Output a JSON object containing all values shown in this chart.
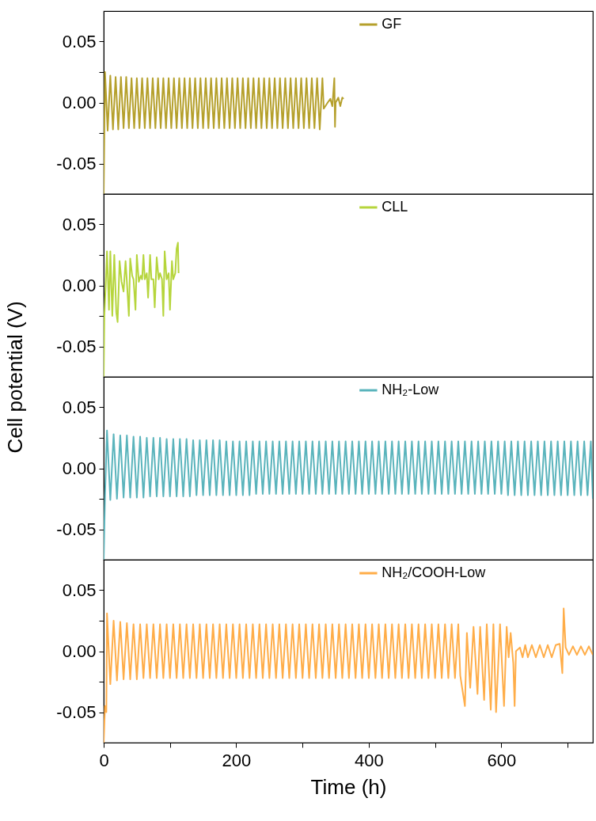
{
  "chart_data": [
    {
      "type": "line",
      "xlim": [
        0,
        738
      ],
      "ylim": [
        -0.075,
        0.075
      ],
      "tick_labels": "y",
      "grid": false,
      "legend": "top",
      "marker": "none",
      "line_style": "solid",
      "yticks": [
        {
          "value": -0.05,
          "label": "-0.05"
        },
        {
          "value": -0.025,
          "label": null
        },
        {
          "value": 0,
          "label": "0.00"
        },
        {
          "value": 0.025,
          "label": null
        },
        {
          "value": 0.05,
          "label": "0.05"
        }
      ],
      "x": [
        0,
        1,
        2,
        6,
        10,
        14,
        18,
        22,
        26,
        30,
        34,
        38,
        42,
        46,
        50,
        54,
        58,
        62,
        66,
        70,
        74,
        78,
        82,
        86,
        90,
        94,
        98,
        102,
        106,
        110,
        114,
        118,
        122,
        126,
        130,
        134,
        138,
        142,
        146,
        150,
        154,
        158,
        162,
        166,
        170,
        174,
        178,
        182,
        186,
        190,
        194,
        198,
        202,
        206,
        210,
        214,
        218,
        222,
        226,
        230,
        234,
        238,
        242,
        246,
        250,
        254,
        258,
        262,
        266,
        270,
        274,
        278,
        282,
        286,
        290,
        294,
        298,
        302,
        306,
        310,
        314,
        318,
        322,
        326,
        330,
        332,
        338,
        342,
        345,
        348,
        349,
        350,
        354,
        357,
        360,
        362
      ],
      "series": [
        {
          "name": "GF",
          "color": "#b5a02c",
          "values": [
            -0.075,
            -0.024,
            0.025,
            -0.023,
            0.022,
            -0.022,
            0.021,
            -0.022,
            0.021,
            -0.021,
            0.021,
            -0.021,
            0.02,
            -0.021,
            0.02,
            -0.021,
            0.02,
            -0.021,
            0.02,
            -0.021,
            0.02,
            -0.021,
            0.02,
            -0.021,
            0.02,
            -0.021,
            0.02,
            -0.021,
            0.02,
            -0.021,
            0.02,
            -0.021,
            0.02,
            -0.021,
            0.02,
            -0.021,
            0.02,
            -0.021,
            0.02,
            -0.021,
            0.02,
            -0.021,
            0.02,
            -0.021,
            0.02,
            -0.021,
            0.02,
            -0.021,
            0.02,
            -0.021,
            0.02,
            -0.021,
            0.02,
            -0.021,
            0.02,
            -0.021,
            0.02,
            -0.021,
            0.02,
            -0.021,
            0.02,
            -0.021,
            0.02,
            -0.021,
            0.02,
            -0.021,
            0.02,
            -0.021,
            0.02,
            -0.021,
            0.02,
            -0.021,
            0.02,
            -0.021,
            0.02,
            -0.021,
            0.02,
            -0.021,
            0.02,
            -0.021,
            0.02,
            -0.021,
            0.02,
            -0.022,
            0.02,
            -0.005,
            0.0,
            0.003,
            -0.003,
            0.02,
            -0.02,
            0.0,
            0.004,
            -0.003,
            0.004,
            0.003
          ]
        }
      ]
    },
    {
      "type": "line",
      "xlim": [
        0,
        738
      ],
      "ylim": [
        -0.075,
        0.075
      ],
      "tick_labels": "y",
      "grid": false,
      "legend": "top",
      "marker": "none",
      "line_style": "solid",
      "ylabel": "Cell potential (V)",
      "yticks": [
        {
          "value": -0.05,
          "label": "-0.05"
        },
        {
          "value": -0.025,
          "label": null
        },
        {
          "value": 0,
          "label": "0.00"
        },
        {
          "value": 0.025,
          "label": null
        },
        {
          "value": 0.05,
          "label": "0.05"
        }
      ],
      "x": [
        0,
        1,
        3,
        5,
        8,
        10,
        13,
        16,
        19,
        21,
        24,
        27,
        30,
        33,
        35,
        38,
        40,
        43,
        45,
        48,
        50,
        53,
        56,
        58,
        60,
        62,
        65,
        67,
        70,
        72,
        75,
        77,
        80,
        83,
        85,
        88,
        90,
        92,
        95,
        98,
        100,
        103,
        105,
        108,
        110,
        112,
        113
      ],
      "series": [
        {
          "name": "CLL",
          "color": "#b6d53c",
          "values": [
            -0.075,
            -0.025,
            0.0,
            0.028,
            -0.02,
            0.028,
            -0.025,
            0.025,
            -0.022,
            -0.03,
            0.02,
            0.003,
            -0.005,
            0.02,
            0.003,
            -0.025,
            0.022,
            0.008,
            0.005,
            -0.02,
            0.025,
            0.003,
            0.008,
            0.005,
            0.025,
            0.005,
            0.01,
            -0.01,
            0.025,
            0.005,
            0.005,
            -0.018,
            0.023,
            0.005,
            0.01,
            0.005,
            -0.025,
            0.028,
            0.005,
            0.01,
            -0.02,
            0.02,
            0.005,
            0.01,
            0.03,
            0.035,
            0.01
          ]
        }
      ]
    },
    {
      "type": "line",
      "xlim": [
        0,
        738
      ],
      "ylim": [
        -0.075,
        0.075
      ],
      "tick_labels": "y",
      "grid": false,
      "legend": "top",
      "marker": "none",
      "line_style": "solid",
      "yticks": [
        {
          "value": -0.05,
          "label": "-0.05"
        },
        {
          "value": -0.025,
          "label": null
        },
        {
          "value": 0,
          "label": "0.00"
        },
        {
          "value": 0.025,
          "label": null
        },
        {
          "value": 0.05,
          "label": "0.05"
        }
      ],
      "x": [
        0,
        2,
        5,
        10,
        15,
        20,
        25,
        30,
        35,
        40,
        45,
        50,
        55,
        60,
        65,
        70,
        75,
        80,
        85,
        90,
        95,
        100,
        105,
        110,
        115,
        120,
        125,
        130,
        135,
        140,
        145,
        150,
        155,
        160,
        165,
        170,
        175,
        180,
        185,
        190,
        195,
        200,
        205,
        210,
        215,
        220,
        225,
        230,
        235,
        240,
        245,
        250,
        255,
        260,
        265,
        270,
        275,
        280,
        285,
        290,
        295,
        300,
        305,
        310,
        315,
        320,
        325,
        330,
        335,
        340,
        345,
        350,
        355,
        360,
        365,
        370,
        375,
        380,
        385,
        390,
        395,
        400,
        405,
        410,
        415,
        420,
        425,
        430,
        435,
        440,
        445,
        450,
        455,
        460,
        465,
        470,
        475,
        480,
        485,
        490,
        495,
        500,
        505,
        510,
        515,
        520,
        525,
        530,
        535,
        540,
        545,
        550,
        555,
        560,
        565,
        570,
        575,
        580,
        585,
        590,
        595,
        600,
        605,
        610,
        615,
        620,
        625,
        630,
        635,
        640,
        645,
        650,
        655,
        660,
        665,
        670,
        675,
        680,
        685,
        690,
        695,
        700,
        705,
        710,
        715,
        720,
        725,
        730,
        735,
        738
      ],
      "series": [
        {
          "name": "NH₂-Low",
          "color": "#5ab4bc",
          "values": [
            -0.075,
            -0.022,
            0.031,
            -0.026,
            0.028,
            -0.025,
            0.027,
            -0.024,
            0.027,
            -0.024,
            0.026,
            -0.024,
            0.026,
            -0.024,
            0.025,
            -0.023,
            0.025,
            -0.023,
            0.025,
            -0.023,
            0.024,
            -0.023,
            0.024,
            -0.023,
            0.024,
            -0.023,
            0.024,
            -0.023,
            0.023,
            -0.022,
            0.023,
            -0.022,
            0.023,
            -0.022,
            0.023,
            -0.022,
            0.023,
            -0.022,
            0.022,
            -0.022,
            0.022,
            -0.022,
            0.022,
            -0.022,
            0.022,
            -0.022,
            0.022,
            -0.021,
            0.022,
            -0.021,
            0.022,
            -0.021,
            0.022,
            -0.021,
            0.022,
            -0.021,
            0.022,
            -0.021,
            0.022,
            -0.021,
            0.022,
            -0.021,
            0.022,
            -0.021,
            0.022,
            -0.021,
            0.022,
            -0.021,
            0.022,
            -0.021,
            0.022,
            -0.021,
            0.022,
            -0.021,
            0.022,
            -0.021,
            0.022,
            -0.021,
            0.022,
            -0.021,
            0.022,
            -0.021,
            0.022,
            -0.021,
            0.022,
            -0.021,
            0.022,
            -0.021,
            0.022,
            -0.021,
            0.022,
            -0.021,
            0.022,
            -0.021,
            0.022,
            -0.021,
            0.022,
            -0.021,
            0.022,
            -0.021,
            0.022,
            -0.021,
            0.022,
            -0.021,
            0.022,
            -0.021,
            0.022,
            -0.021,
            0.022,
            -0.021,
            0.022,
            -0.021,
            0.022,
            -0.021,
            0.022,
            -0.021,
            0.022,
            -0.021,
            0.022,
            -0.021,
            0.022,
            -0.021,
            0.022,
            -0.022,
            0.022,
            -0.022,
            0.022,
            -0.022,
            0.022,
            -0.022,
            0.022,
            -0.022,
            0.022,
            -0.022,
            0.022,
            -0.022,
            0.022,
            -0.022,
            0.022,
            -0.022,
            0.022,
            -0.022,
            0.022,
            -0.022,
            0.022,
            -0.022,
            0.022,
            -0.022,
            0.022,
            -0.025
          ]
        }
      ]
    },
    {
      "type": "line",
      "xlim": [
        0,
        738
      ],
      "ylim": [
        -0.075,
        0.075
      ],
      "grid": false,
      "legend": "top",
      "marker": "none",
      "line_style": "solid",
      "xlabel": "Time (h)",
      "xticks": [
        0,
        {
          "value": 100,
          "label": null
        },
        200,
        {
          "value": 300,
          "label": null
        },
        400,
        {
          "value": 500,
          "label": null
        },
        600,
        {
          "value": 700,
          "label": null
        }
      ],
      "yticks": [
        {
          "value": -0.05,
          "label": "-0.05"
        },
        {
          "value": -0.025,
          "label": null
        },
        {
          "value": 0,
          "label": "0.00"
        },
        {
          "value": 0.025,
          "label": null
        },
        {
          "value": 0.05,
          "label": "0.05"
        }
      ],
      "x": [
        0,
        2,
        4,
        5,
        10,
        15,
        20,
        25,
        30,
        35,
        40,
        45,
        50,
        55,
        60,
        65,
        70,
        75,
        80,
        85,
        90,
        95,
        100,
        105,
        110,
        115,
        120,
        125,
        130,
        135,
        140,
        145,
        150,
        155,
        160,
        165,
        170,
        175,
        180,
        185,
        190,
        195,
        200,
        205,
        210,
        215,
        220,
        225,
        230,
        235,
        240,
        245,
        250,
        255,
        260,
        265,
        270,
        275,
        280,
        285,
        290,
        295,
        300,
        305,
        310,
        315,
        320,
        325,
        330,
        335,
        340,
        345,
        350,
        355,
        360,
        365,
        370,
        375,
        380,
        385,
        390,
        395,
        400,
        405,
        410,
        415,
        420,
        425,
        430,
        435,
        440,
        445,
        450,
        455,
        460,
        465,
        470,
        475,
        480,
        485,
        490,
        495,
        500,
        505,
        510,
        515,
        520,
        525,
        530,
        535,
        538,
        545,
        548,
        553,
        558,
        564,
        568,
        574,
        578,
        584,
        588,
        592,
        598,
        604,
        608,
        611,
        614,
        618,
        620,
        622,
        628,
        632,
        636,
        640,
        646,
        652,
        658,
        664,
        670,
        676,
        682,
        688,
        692,
        694,
        697,
        702,
        708,
        714,
        720,
        726,
        732,
        738
      ],
      "series": [
        {
          "name": "NH₂/COOH-Low",
          "color": "#ffad48",
          "values": [
            -0.075,
            -0.045,
            -0.05,
            0.031,
            -0.027,
            0.025,
            -0.024,
            0.024,
            -0.023,
            0.023,
            -0.023,
            0.022,
            -0.023,
            0.022,
            -0.022,
            0.022,
            -0.022,
            0.022,
            -0.022,
            0.022,
            -0.022,
            0.022,
            -0.022,
            0.022,
            -0.022,
            0.022,
            -0.022,
            0.022,
            -0.022,
            0.022,
            -0.022,
            0.022,
            -0.022,
            0.022,
            -0.022,
            0.022,
            -0.022,
            0.022,
            -0.022,
            0.022,
            -0.022,
            0.022,
            -0.022,
            0.022,
            -0.022,
            0.022,
            -0.022,
            0.022,
            -0.022,
            0.022,
            -0.022,
            0.022,
            -0.022,
            0.022,
            -0.022,
            0.022,
            -0.022,
            0.022,
            -0.022,
            0.022,
            -0.022,
            0.022,
            -0.022,
            0.022,
            -0.022,
            0.022,
            -0.022,
            0.022,
            -0.022,
            0.022,
            -0.022,
            0.022,
            -0.022,
            0.022,
            -0.022,
            0.022,
            -0.022,
            0.022,
            -0.022,
            0.022,
            -0.022,
            0.022,
            -0.022,
            0.022,
            -0.022,
            0.022,
            -0.022,
            0.022,
            -0.022,
            0.022,
            -0.022,
            0.022,
            -0.022,
            0.022,
            -0.022,
            0.022,
            -0.022,
            0.022,
            -0.022,
            0.022,
            -0.022,
            0.022,
            -0.022,
            0.022,
            -0.022,
            0.022,
            -0.022,
            0.022,
            -0.022,
            0.022,
            -0.02,
            -0.045,
            0.015,
            -0.03,
            0.02,
            -0.035,
            0.02,
            -0.04,
            0.022,
            -0.048,
            0.022,
            -0.05,
            0.022,
            -0.045,
            0.02,
            -0.005,
            0.015,
            -0.01,
            -0.045,
            0.0,
            0.003,
            -0.005,
            0.005,
            -0.005,
            0.005,
            -0.005,
            0.005,
            -0.005,
            0.005,
            -0.005,
            0.005,
            0.006,
            -0.018,
            0.035,
            0.003,
            -0.003,
            0.004,
            -0.003,
            0.004,
            -0.003,
            0.004,
            -0.003
          ]
        }
      ]
    }
  ]
}
